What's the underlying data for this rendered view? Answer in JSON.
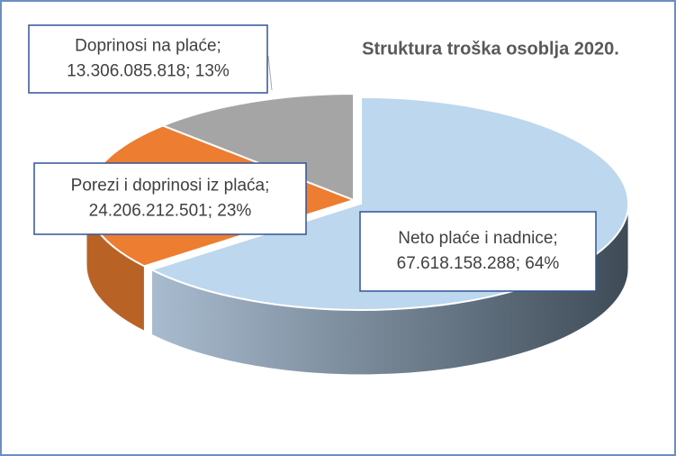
{
  "chart_data": {
    "type": "pie3d",
    "title": "Struktura troška osoblja 2020.",
    "categories": [
      "Neto plaće i nadnice;",
      "Porezi i doprinosi iz plaća;",
      "Doprinosi na plaće;"
    ],
    "values": [
      67618158288,
      24206212501,
      13306085818
    ],
    "value_labels": [
      "67.618.158.288; 64%",
      "24.206.212.501; 23%",
      "13.306.085.818; 13%"
    ],
    "colors": [
      "#bdd7ee",
      "#ed7d31",
      "#a5a5a5"
    ]
  }
}
